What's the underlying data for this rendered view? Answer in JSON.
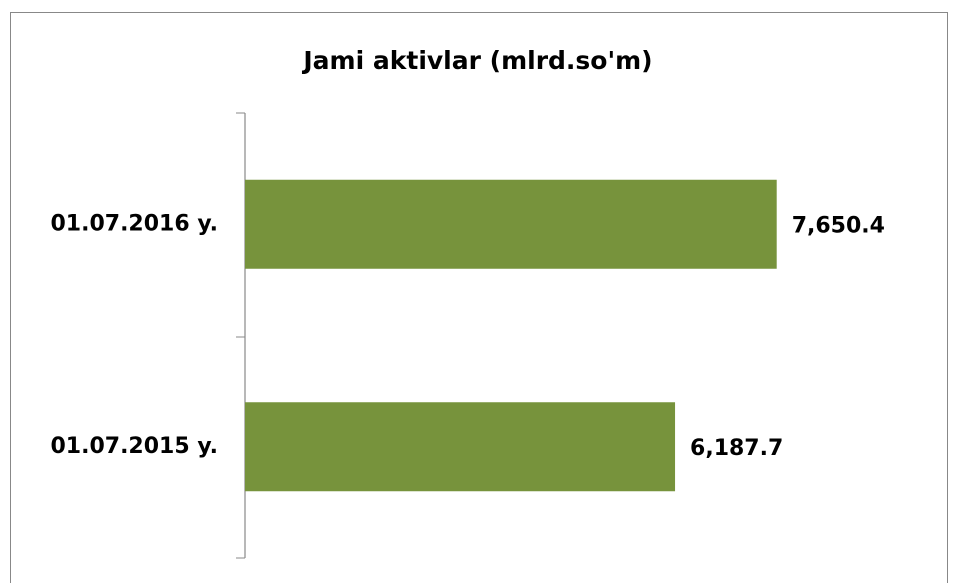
{
  "chart_data": {
    "type": "bar",
    "orientation": "horizontal",
    "title": "Jami aktivlar (mlrd.so'm)",
    "categories": [
      "01.07.2016 y.",
      "01.07.2015 y."
    ],
    "values": [
      7650.4,
      6187.7
    ],
    "value_labels": [
      "7,650.4",
      "6,187.7"
    ],
    "color": "#77933c",
    "xlim": [
      0,
      8000
    ]
  }
}
